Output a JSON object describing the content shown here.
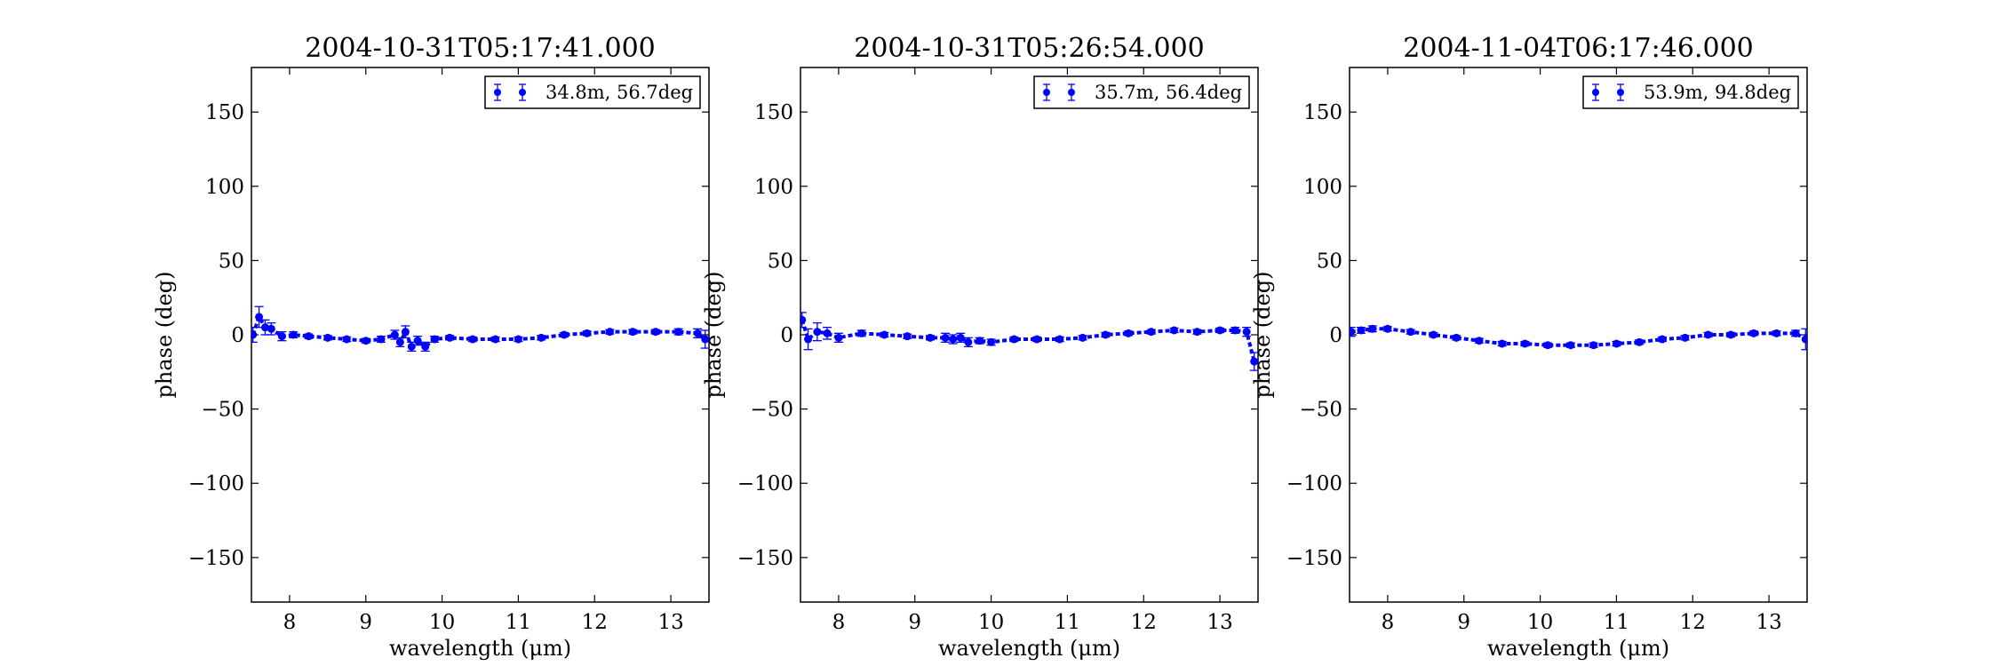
{
  "figure": {
    "colors": {
      "series": "#0000ff",
      "axis": "#000000",
      "background": "#ffffff"
    }
  },
  "chart_data": [
    {
      "type": "scatter",
      "title": "2004-10-31T05:17:41.000",
      "xlabel": "wavelength (μm)",
      "ylabel": "phase (deg)",
      "xlim": [
        7.5,
        13.5
      ],
      "ylim": [
        -180,
        180
      ],
      "xticks": [
        8,
        9,
        10,
        11,
        12,
        13
      ],
      "yticks": [
        150,
        100,
        50,
        0,
        -50,
        -100,
        -150
      ],
      "grid": false,
      "legend_position": "top-right",
      "series": [
        {
          "name": "34.8m, 56.7deg",
          "x": [
            7.52,
            7.6,
            7.68,
            7.76,
            7.9,
            8.05,
            8.25,
            8.5,
            8.75,
            9.0,
            9.2,
            9.38,
            9.45,
            9.52,
            9.6,
            9.68,
            9.78,
            9.9,
            10.1,
            10.4,
            10.7,
            11.0,
            11.3,
            11.6,
            11.9,
            12.2,
            12.5,
            12.8,
            13.1,
            13.35,
            13.45
          ],
          "y": [
            0,
            12,
            5,
            4,
            -1,
            0,
            -1,
            -2,
            -3,
            -4,
            -3,
            0,
            -5,
            2,
            -8,
            -4,
            -8,
            -3,
            -2,
            -3,
            -3,
            -3,
            -2,
            0,
            1,
            2,
            2,
            2,
            2,
            1,
            -3
          ],
          "yerr": [
            5,
            7,
            5,
            4,
            3,
            2,
            1.5,
            1.5,
            1.5,
            1.5,
            2,
            3,
            3,
            4,
            3,
            3,
            3,
            2,
            1.5,
            1.5,
            1.5,
            1.5,
            1.5,
            1.5,
            1.5,
            1.5,
            1.5,
            1.5,
            2,
            3,
            6
          ]
        }
      ]
    },
    {
      "type": "scatter",
      "title": "2004-10-31T05:26:54.000",
      "xlabel": "wavelength (μm)",
      "ylabel": "phase (deg)",
      "xlim": [
        7.5,
        13.5
      ],
      "ylim": [
        -180,
        180
      ],
      "xticks": [
        8,
        9,
        10,
        11,
        12,
        13
      ],
      "yticks": [
        150,
        100,
        50,
        0,
        -50,
        -100,
        -150
      ],
      "grid": false,
      "legend_position": "top-right",
      "series": [
        {
          "name": "35.7m, 56.4deg",
          "x": [
            7.52,
            7.6,
            7.72,
            7.85,
            8.0,
            8.3,
            8.6,
            8.9,
            9.2,
            9.4,
            9.5,
            9.6,
            9.7,
            9.85,
            10.0,
            10.3,
            10.6,
            10.9,
            11.2,
            11.5,
            11.8,
            12.1,
            12.4,
            12.7,
            13.0,
            13.2,
            13.35,
            13.45
          ],
          "y": [
            10,
            -3,
            2,
            1,
            -2,
            1,
            0,
            -1,
            -2,
            -2,
            -3,
            -2,
            -5,
            -4,
            -5,
            -3,
            -3,
            -3,
            -2,
            0,
            1,
            2,
            3,
            2,
            3,
            3,
            2,
            -18
          ],
          "yerr": [
            5,
            7,
            6,
            4,
            3,
            2,
            1.5,
            1.5,
            1.5,
            3,
            3,
            3,
            3,
            2,
            2,
            1.5,
            1.5,
            1.5,
            1.5,
            1.5,
            1.5,
            1.5,
            1.5,
            1.5,
            1.5,
            2,
            3,
            6
          ]
        }
      ]
    },
    {
      "type": "scatter",
      "title": "2004-11-04T06:17:46.000",
      "xlabel": "wavelength (μm)",
      "ylabel": "phase (deg)",
      "xlim": [
        7.5,
        13.5
      ],
      "ylim": [
        -180,
        180
      ],
      "xticks": [
        8,
        9,
        10,
        11,
        12,
        13
      ],
      "yticks": [
        150,
        100,
        50,
        0,
        -50,
        -100,
        -150
      ],
      "grid": false,
      "legend_position": "top-right",
      "series": [
        {
          "name": "53.9m, 94.8deg",
          "x": [
            7.52,
            7.65,
            7.8,
            8.0,
            8.3,
            8.6,
            8.9,
            9.2,
            9.5,
            9.8,
            10.1,
            10.4,
            10.7,
            11.0,
            11.3,
            11.6,
            11.9,
            12.2,
            12.5,
            12.8,
            13.1,
            13.35,
            13.48
          ],
          "y": [
            2,
            3,
            4,
            4,
            2,
            0,
            -2,
            -4,
            -6,
            -6,
            -7,
            -7,
            -7,
            -6,
            -5,
            -3,
            -2,
            0,
            0,
            1,
            1,
            1,
            -3
          ],
          "yerr": [
            3,
            2,
            2,
            1.5,
            1.5,
            1.5,
            1.5,
            1.5,
            1.5,
            1.5,
            1.5,
            1.5,
            1.5,
            1.5,
            1.5,
            1.5,
            1.5,
            1.5,
            1.5,
            1.5,
            1.5,
            2,
            7
          ]
        }
      ]
    }
  ]
}
